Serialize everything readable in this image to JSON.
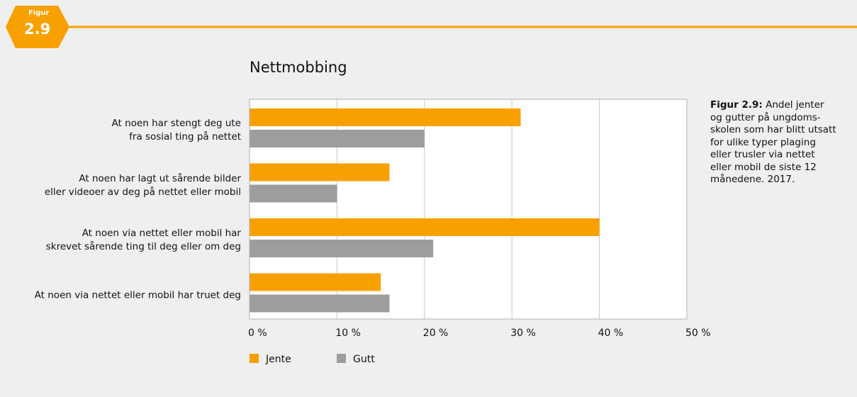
{
  "badge": {
    "label": "Figur",
    "number": "2.9"
  },
  "note": {
    "label": "Figur 2.9:",
    "text": "Andel jenter og gutter på ungdoms-\nskolen som har blitt utsatt for ulike typer plaging eller trusler via nettet eller mobil de siste 12 månedene. 2017."
  },
  "chart_data": {
    "type": "bar",
    "orientation": "horizontal",
    "title": "Nettmobbing",
    "categories": [
      "At noen har stengt deg ute\nfra sosial ting på nettet",
      "At noen har lagt ut sårende bilder\neller videoer av deg på nettet eller mobil",
      "At noen via nettet eller mobil har\nskrevet sårende ting til deg eller om deg",
      "At noen via nettet eller mobil har truet deg"
    ],
    "series": [
      {
        "name": "Jente",
        "color": "#f7a000",
        "values": [
          31,
          16,
          40,
          15
        ]
      },
      {
        "name": "Gutt",
        "color": "#9d9d9d",
        "values": [
          20,
          10,
          21,
          16
        ]
      }
    ],
    "xlim": [
      0,
      50
    ],
    "xticks": [
      {
        "value": 0,
        "label": "0 %"
      },
      {
        "value": 10,
        "label": "10 %"
      },
      {
        "value": 20,
        "label": "20 %"
      },
      {
        "value": 30,
        "label": "30 %"
      },
      {
        "value": 40,
        "label": "40 %"
      },
      {
        "value": 50,
        "label": "50 %"
      }
    ],
    "grid": true,
    "legend": "bottom"
  }
}
